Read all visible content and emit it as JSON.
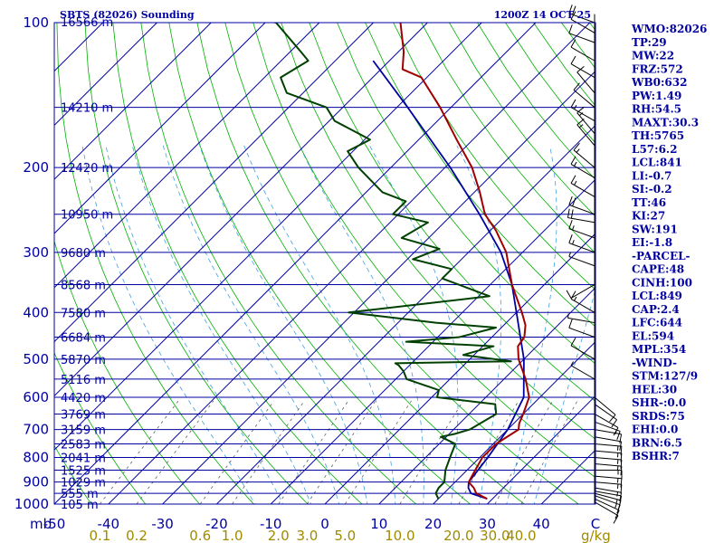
{
  "chart_data": {
    "type": "skew-t",
    "title_left": "SBTS (82026) Sounding",
    "title_right": "1200Z 14 OCT 25",
    "pressure_axis": {
      "unit_label": "mb",
      "ticks": [
        100,
        200,
        300,
        400,
        500,
        600,
        700,
        800,
        900,
        1000
      ],
      "range": [
        100,
        1000
      ]
    },
    "temperature_axis": {
      "unit_label": "C",
      "ticks": [
        -50,
        -40,
        -30,
        -20,
        -10,
        0,
        10,
        20,
        30,
        40
      ],
      "range": [
        -50,
        50
      ]
    },
    "mixing_ratio_axis": {
      "unit_label": "g/kg",
      "ticks": [
        "0.1",
        "0.2",
        "0.6",
        "1.0",
        "2.0",
        "3.0",
        "5.0",
        "10.0",
        "20.0",
        "30.0",
        "40.0"
      ]
    },
    "height_labels": [
      {
        "p": 100,
        "label": "16566 m"
      },
      {
        "p": 150,
        "label": "14210 m"
      },
      {
        "p": 200,
        "label": "12420 m"
      },
      {
        "p": 250,
        "label": "10950 m"
      },
      {
        "p": 300,
        "label": "9680 m"
      },
      {
        "p": 350,
        "label": "8568 m"
      },
      {
        "p": 400,
        "label": "7580 m"
      },
      {
        "p": 450,
        "label": "6684 m"
      },
      {
        "p": 500,
        "label": "5870 m"
      },
      {
        "p": 550,
        "label": "5116 m"
      },
      {
        "p": 600,
        "label": "4420 m"
      },
      {
        "p": 650,
        "label": "3769 m"
      },
      {
        "p": 700,
        "label": "3159 m"
      },
      {
        "p": 750,
        "label": "2583 m"
      },
      {
        "p": 800,
        "label": "2041 m"
      },
      {
        "p": 850,
        "label": "1525 m"
      },
      {
        "p": 900,
        "label": "1029 m"
      },
      {
        "p": 950,
        "label": "555 m"
      },
      {
        "p": 1000,
        "label": "105 m"
      }
    ],
    "temperature_profile": [
      {
        "p": 975,
        "t": 29
      },
      {
        "p": 950,
        "t": 26
      },
      {
        "p": 925,
        "t": 24.5
      },
      {
        "p": 900,
        "t": 22.5
      },
      {
        "p": 850,
        "t": 21.5
      },
      {
        "p": 800,
        "t": 20.5
      },
      {
        "p": 750,
        "t": 20.5
      },
      {
        "p": 700,
        "t": 22
      },
      {
        "p": 680,
        "t": 21
      },
      {
        "p": 650,
        "t": 20
      },
      {
        "p": 600,
        "t": 18
      },
      {
        "p": 550,
        "t": 14
      },
      {
        "p": 500,
        "t": 9
      },
      {
        "p": 470,
        "t": 6.5
      },
      {
        "p": 450,
        "t": 6
      },
      {
        "p": 425,
        "t": 4
      },
      {
        "p": 400,
        "t": 1
      },
      {
        "p": 350,
        "t": -6
      },
      {
        "p": 300,
        "t": -13
      },
      {
        "p": 270,
        "t": -19
      },
      {
        "p": 250,
        "t": -24
      },
      {
        "p": 225,
        "t": -29
      },
      {
        "p": 200,
        "t": -35
      },
      {
        "p": 175,
        "t": -43
      },
      {
        "p": 150,
        "t": -52
      },
      {
        "p": 130,
        "t": -61
      },
      {
        "p": 125,
        "t": -66
      },
      {
        "p": 115,
        "t": -69
      },
      {
        "p": 100,
        "t": -75
      },
      {
        "p": 97,
        "t": -79
      }
    ],
    "dewpoint_profile": [
      {
        "p": 975,
        "td": 20
      },
      {
        "p": 950,
        "td": 18.5
      },
      {
        "p": 925,
        "td": 18
      },
      {
        "p": 900,
        "td": 18
      },
      {
        "p": 850,
        "td": 16
      },
      {
        "p": 800,
        "td": 14.5
      },
      {
        "p": 750,
        "td": 13
      },
      {
        "p": 725,
        "td": 9
      },
      {
        "p": 715,
        "td": 11
      },
      {
        "p": 700,
        "td": 13
      },
      {
        "p": 650,
        "td": 15
      },
      {
        "p": 620,
        "td": 13
      },
      {
        "p": 600,
        "td": 1
      },
      {
        "p": 580,
        "td": 0
      },
      {
        "p": 550,
        "td": -8
      },
      {
        "p": 530,
        "td": -10
      },
      {
        "p": 515,
        "td": -12
      },
      {
        "p": 510,
        "td": -13
      },
      {
        "p": 505,
        "td": 8
      },
      {
        "p": 490,
        "td": -2
      },
      {
        "p": 470,
        "td": 2
      },
      {
        "p": 460,
        "td": -15
      },
      {
        "p": 450,
        "td": -6
      },
      {
        "p": 430,
        "td": -1
      },
      {
        "p": 420,
        "td": -13
      },
      {
        "p": 400,
        "td": -31
      },
      {
        "p": 370,
        "td": -8
      },
      {
        "p": 340,
        "td": -20
      },
      {
        "p": 325,
        "td": -20
      },
      {
        "p": 310,
        "td": -29
      },
      {
        "p": 295,
        "td": -26
      },
      {
        "p": 280,
        "td": -35
      },
      {
        "p": 260,
        "td": -33
      },
      {
        "p": 250,
        "td": -41
      },
      {
        "p": 235,
        "td": -41
      },
      {
        "p": 225,
        "td": -47
      },
      {
        "p": 200,
        "td": -56
      },
      {
        "p": 185,
        "td": -61
      },
      {
        "p": 175,
        "td": -59
      },
      {
        "p": 160,
        "td": -69
      },
      {
        "p": 150,
        "td": -73
      },
      {
        "p": 140,
        "td": -83
      },
      {
        "p": 130,
        "td": -87
      },
      {
        "p": 120,
        "td": -85
      },
      {
        "p": 115,
        "td": -88
      },
      {
        "p": 100,
        "td": -98
      },
      {
        "p": 97,
        "td": -105
      }
    ],
    "parcel_profile": [
      {
        "p": 975,
        "t": 29
      },
      {
        "p": 950,
        "t": 25
      },
      {
        "p": 925,
        "t": 23.5
      },
      {
        "p": 900,
        "t": 22.5
      },
      {
        "p": 800,
        "t": 21.5
      },
      {
        "p": 700,
        "t": 20
      },
      {
        "p": 600,
        "t": 17
      },
      {
        "p": 500,
        "t": 10
      },
      {
        "p": 400,
        "t": 0
      },
      {
        "p": 350,
        "t": -6
      },
      {
        "p": 300,
        "t": -14
      },
      {
        "p": 250,
        "t": -25
      },
      {
        "p": 200,
        "t": -39
      },
      {
        "p": 150,
        "t": -58
      },
      {
        "p": 120,
        "t": -73
      }
    ],
    "wind_barbs": [
      {
        "p": 990,
        "dir": 120,
        "spd": 10
      },
      {
        "p": 975,
        "dir": 115,
        "spd": 10
      },
      {
        "p": 960,
        "dir": 110,
        "spd": 15
      },
      {
        "p": 950,
        "dir": 105,
        "spd": 15
      },
      {
        "p": 940,
        "dir": 100,
        "spd": 10
      },
      {
        "p": 925,
        "dir": 100,
        "spd": 15
      },
      {
        "p": 900,
        "dir": 95,
        "spd": 15
      },
      {
        "p": 875,
        "dir": 95,
        "spd": 15
      },
      {
        "p": 850,
        "dir": 90,
        "spd": 15
      },
      {
        "p": 825,
        "dir": 95,
        "spd": 15
      },
      {
        "p": 800,
        "dir": 95,
        "spd": 15
      },
      {
        "p": 775,
        "dir": 95,
        "spd": 15
      },
      {
        "p": 750,
        "dir": 95,
        "spd": 15
      },
      {
        "p": 725,
        "dir": 100,
        "spd": 10
      },
      {
        "p": 700,
        "dir": 100,
        "spd": 10
      },
      {
        "p": 675,
        "dir": 110,
        "spd": 15
      },
      {
        "p": 650,
        "dir": 120,
        "spd": 10
      },
      {
        "p": 620,
        "dir": 125,
        "spd": 10
      },
      {
        "p": 600,
        "dir": 130,
        "spd": 10
      },
      {
        "p": 550,
        "dir": 300,
        "spd": 5
      },
      {
        "p": 500,
        "dir": 300,
        "spd": 10
      },
      {
        "p": 450,
        "dir": 290,
        "spd": 10
      },
      {
        "p": 420,
        "dir": 280,
        "spd": 5
      },
      {
        "p": 400,
        "dir": 300,
        "spd": 15
      },
      {
        "p": 350,
        "dir": 240,
        "spd": 10
      },
      {
        "p": 320,
        "dir": 290,
        "spd": 5
      },
      {
        "p": 300,
        "dir": 290,
        "spd": 15
      },
      {
        "p": 280,
        "dir": 290,
        "spd": 15
      },
      {
        "p": 260,
        "dir": 280,
        "spd": 20
      },
      {
        "p": 250,
        "dir": 290,
        "spd": 20
      },
      {
        "p": 230,
        "dir": 300,
        "spd": 15
      },
      {
        "p": 210,
        "dir": 300,
        "spd": 15
      },
      {
        "p": 200,
        "dir": 310,
        "spd": 15
      },
      {
        "p": 180,
        "dir": 320,
        "spd": 15
      },
      {
        "p": 170,
        "dir": 320,
        "spd": 15
      },
      {
        "p": 160,
        "dir": 300,
        "spd": 15
      },
      {
        "p": 150,
        "dir": 310,
        "spd": 10
      },
      {
        "p": 140,
        "dir": 320,
        "spd": 10
      },
      {
        "p": 130,
        "dir": 300,
        "spd": 10
      },
      {
        "p": 120,
        "dir": 300,
        "spd": 10
      },
      {
        "p": 110,
        "dir": 290,
        "spd": 10
      },
      {
        "p": 105,
        "dir": 300,
        "spd": 10
      },
      {
        "p": 100,
        "dir": 290,
        "spd": 20
      }
    ],
    "indices": [
      "WMO:82026",
      "TP:29",
      "MW:22",
      "FRZ:572",
      "WB0:632",
      "PW:1.49",
      "RH:54.5",
      "MAXT:30.3",
      "TH:5765",
      "L57:6.2",
      "LCL:841",
      "LI:-0.7",
      "SI:-0.2",
      "TT:46",
      "KI:27",
      "SW:191",
      "EI:-1.8",
      "-PARCEL-",
      "CAPE:48",
      "CINH:100",
      "LCL:849",
      "CAP:2.4",
      "LFC:644",
      "EL:594",
      "MPL:354",
      "-WIND-",
      "STM:127/9",
      "HEL:30",
      "SHR-:0.0",
      "SRDS:75",
      "EHI:0.0",
      "BRN:6.5",
      "BSHR:7"
    ],
    "colors": {
      "frame": "#0000a0",
      "temperature": "#a00000",
      "dewpoint": "#004000",
      "parcel": "#0000a0",
      "dry_adiabat": "#00b000",
      "moist_adiabat": "#40a0e0",
      "mixing_ratio": "#606060",
      "wind_barb": "#000000",
      "mix_labels": "#a08a00"
    }
  }
}
